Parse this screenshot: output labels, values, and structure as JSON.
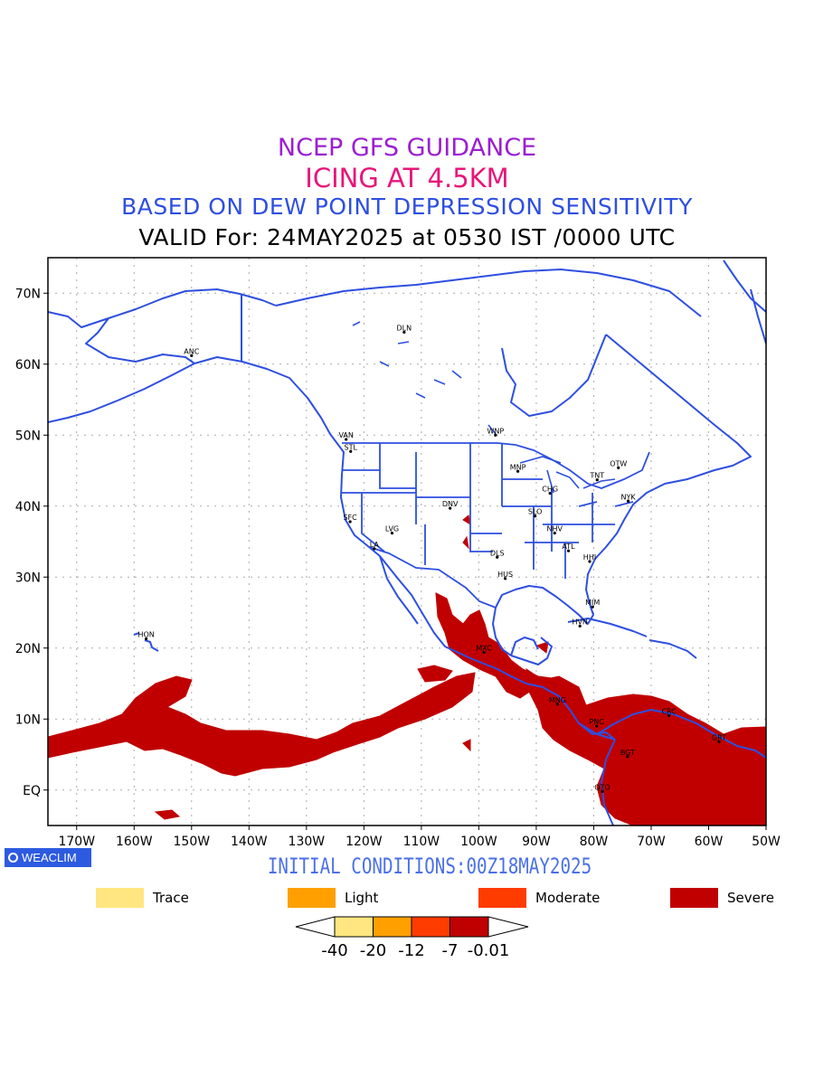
{
  "titles": {
    "line1": "NCEP GFS GUIDANCE",
    "line2": "ICING AT 4.5KM",
    "line3": "BASED ON DEW POINT DEPRESSION SENSITIVITY",
    "line4": "VALID For: 24MAY2025 at 0530 IST /0000 UTC"
  },
  "map": {
    "lon_range": [
      -175,
      -50
    ],
    "lat_range": [
      -5,
      75
    ],
    "lon_ticks": [
      "170W",
      "160W",
      "150W",
      "140W",
      "130W",
      "120W",
      "110W",
      "100W",
      "90W",
      "80W",
      "70W",
      "60W",
      "50W"
    ],
    "lat_ticks": [
      "70N",
      "60N",
      "50N",
      "40N",
      "30N",
      "20N",
      "10N",
      "EQ"
    ],
    "grid": "dotted",
    "colors": {
      "coastline": "#2e4fe0",
      "severe": "#c00000",
      "grid": "#999999"
    },
    "stations": [
      {
        "code": "ANC",
        "lon": -150,
        "lat": 61.2
      },
      {
        "code": "DLN",
        "lon": -113,
        "lat": 64.5
      },
      {
        "code": "HON",
        "lon": -157.9,
        "lat": 21.3
      },
      {
        "code": "VAN",
        "lon": -123.1,
        "lat": 49.4
      },
      {
        "code": "STL",
        "lon": -122.3,
        "lat": 47.7
      },
      {
        "code": "WNP",
        "lon": -97.1,
        "lat": 50.0
      },
      {
        "code": "MNP",
        "lon": -93.2,
        "lat": 44.9
      },
      {
        "code": "OTW",
        "lon": -75.7,
        "lat": 45.4
      },
      {
        "code": "TNT",
        "lon": -79.4,
        "lat": 43.7
      },
      {
        "code": "CHG",
        "lon": -87.6,
        "lat": 41.8
      },
      {
        "code": "NYK",
        "lon": -74.0,
        "lat": 40.7
      },
      {
        "code": "SFC",
        "lon": -122.4,
        "lat": 37.8
      },
      {
        "code": "DNV",
        "lon": -105,
        "lat": 39.7
      },
      {
        "code": "SLO",
        "lon": -90.2,
        "lat": 38.6
      },
      {
        "code": "LVG",
        "lon": -115.1,
        "lat": 36.2
      },
      {
        "code": "NHV",
        "lon": -86.8,
        "lat": 36.2
      },
      {
        "code": "LA",
        "lon": -118.2,
        "lat": 34.0
      },
      {
        "code": "DLS",
        "lon": -96.8,
        "lat": 32.8
      },
      {
        "code": "ATL",
        "lon": -84.4,
        "lat": 33.7
      },
      {
        "code": "HHI",
        "lon": -80.7,
        "lat": 32.2
      },
      {
        "code": "HUS",
        "lon": -95.4,
        "lat": 29.8
      },
      {
        "code": "MIM",
        "lon": -80.2,
        "lat": 25.8
      },
      {
        "code": "HVN",
        "lon": -82.4,
        "lat": 23.1
      },
      {
        "code": "MXC",
        "lon": -99.1,
        "lat": 19.4
      },
      {
        "code": "MNG",
        "lon": -86.3,
        "lat": 12.1
      },
      {
        "code": "PNC",
        "lon": -79.5,
        "lat": 9.0
      },
      {
        "code": "BGT",
        "lon": -74.1,
        "lat": 4.7
      },
      {
        "code": "CRC",
        "lon": -66.9,
        "lat": 10.5
      },
      {
        "code": "GRT",
        "lon": -58.2,
        "lat": 6.8
      },
      {
        "code": "QTO",
        "lon": -78.5,
        "lat": -0.2
      }
    ]
  },
  "footer": {
    "brand": "WEACLIM",
    "initial_conditions": "INITIAL CONDITIONS:00Z18MAY2025"
  },
  "legend": [
    {
      "label": "Trace",
      "color": "#ffe680"
    },
    {
      "label": "Light",
      "color": "#ffa000"
    },
    {
      "label": "Moderate",
      "color": "#ff3c00"
    },
    {
      "label": "Severe",
      "color": "#c00000"
    }
  ],
  "colorbar": {
    "ticks": [
      "-40",
      "-20",
      "-12",
      "-7",
      "-0.01"
    ],
    "colors": [
      "#ffe680",
      "#ffa000",
      "#ff3c00",
      "#c00000"
    ]
  }
}
